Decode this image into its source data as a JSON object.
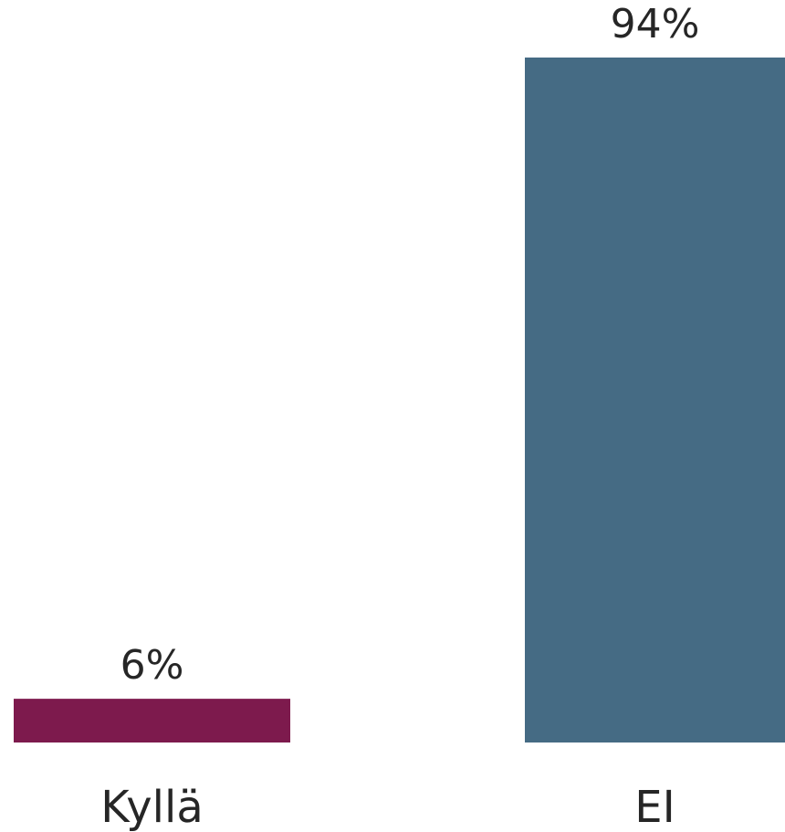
{
  "chart_data": {
    "type": "bar",
    "categories": [
      "Kyllä",
      "EI"
    ],
    "values": [
      6,
      94
    ],
    "value_labels": [
      "6%",
      "94%"
    ],
    "colors": [
      "#7d1a4d",
      "#456b84"
    ],
    "ylim": [
      0,
      94
    ],
    "grid": false,
    "legend": false
  }
}
